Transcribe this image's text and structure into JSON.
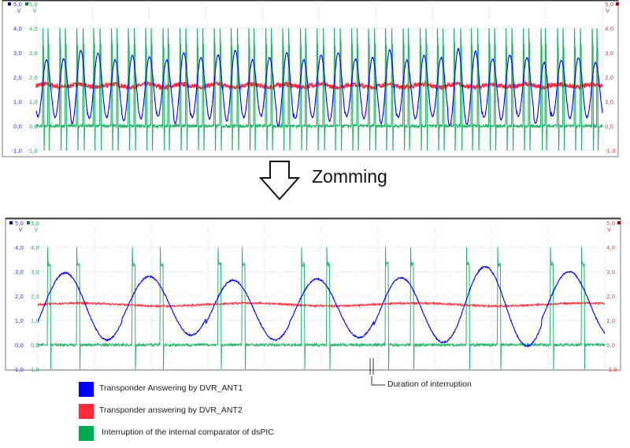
{
  "annotation": {
    "zoom_label": "Zomming",
    "duration_label": "Duration of interruption"
  },
  "legend": [
    {
      "label": "Transponder Answering by DVR_ANT1",
      "color": "#0000ff"
    },
    {
      "label": "Transponder answering by DVR_ANT2",
      "color": "#ff2a3a"
    },
    {
      "label": "Interruption of the internal comparator of dsPIC",
      "color": "#00a850"
    }
  ],
  "chart_data": [
    {
      "type": "line",
      "panel": "overview",
      "ylim": [
        -1.0,
        5.0
      ],
      "ytick_labels": [
        "5,0",
        "4,0",
        "3,0",
        "2,0",
        "1,0",
        "0,0",
        "-1,0"
      ],
      "yunit": "V",
      "grid": true,
      "series": [
        {
          "channel": "blue",
          "color": "#0000ff",
          "cycles": 33,
          "peaks": [
            2.7,
            2.75,
            3.1,
            3.0,
            2.7,
            2.9,
            2.85,
            2.7,
            3.0,
            2.8,
            2.9,
            3.1,
            2.7,
            2.8,
            3.0,
            2.7,
            2.9,
            3.0,
            2.75,
            2.8,
            3.1,
            2.7,
            2.9,
            2.8,
            3.15,
            3.05,
            2.75,
            2.9,
            2.8,
            2.6,
            2.7,
            2.8,
            2.6
          ],
          "troughs": [
            0.4,
            0.35,
            0.1,
            0.3,
            0.35,
            0.2,
            0.3,
            0.4,
            0.1,
            0.35,
            0.3,
            0.2,
            0.35,
            0.4,
            0.0,
            0.3,
            0.35,
            0.2,
            0.4,
            0.3,
            0.1,
            0.35,
            0.3,
            0.4,
            0.0,
            0.05,
            0.35,
            0.25,
            0.4,
            0.1,
            0.4,
            0.3,
            0.35
          ]
        },
        {
          "channel": "red",
          "color": "#ff2a3a",
          "mean": 1.65,
          "ripple": 0.12
        },
        {
          "channel": "green",
          "color": "#00a850",
          "low": 0.0,
          "high": 3.3,
          "spike_max": 4.0,
          "spike_min": -1.0
        }
      ]
    },
    {
      "type": "line",
      "panel": "zoomed",
      "ylim": [
        -1.0,
        5.0
      ],
      "ytick_labels": [
        "5,0",
        "4,0",
        "3,0",
        "2,0",
        "1,0",
        "0,0",
        "-1,0"
      ],
      "yunit": "V",
      "grid": true,
      "series": [
        {
          "channel": "blue",
          "color": "#0000ff",
          "cycles": 6.75,
          "peaks": [
            2.95,
            2.8,
            2.65,
            2.7,
            2.75,
            3.2,
            3.0
          ],
          "troughs": [
            0.2,
            0.4,
            0.2,
            0.3,
            0.1,
            -0.05,
            0.35
          ]
        },
        {
          "channel": "red",
          "color": "#ff2a3a",
          "mean": 1.65,
          "ripple": 0.1
        },
        {
          "channel": "green",
          "color": "#00a850",
          "low": 0.0,
          "high": 3.3,
          "spike_max": 4.0,
          "spike_min": -1.0
        }
      ]
    }
  ]
}
